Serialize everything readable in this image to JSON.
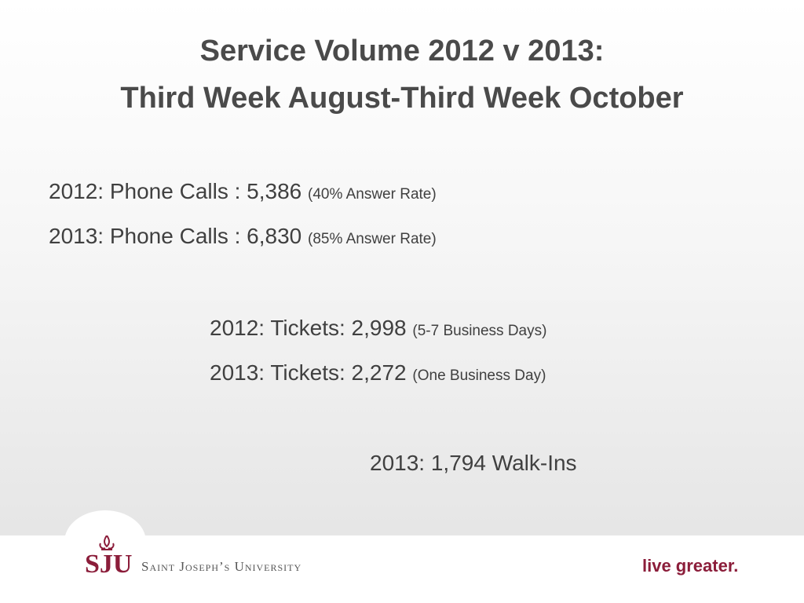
{
  "title": {
    "line1": "Service Volume 2012 v 2013:",
    "line2": "Third Week August-Third Week October"
  },
  "items": [
    {
      "main": "2012: Phone Calls : 5,386",
      "note": "(40% Answer Rate)"
    },
    {
      "main": "2013: Phone Calls : 6,830",
      "note": "(85% Answer Rate)"
    },
    {
      "main": "2012: Tickets: 2,998",
      "note": "(5-7 Business Days)"
    },
    {
      "main": "2013: Tickets: 2,272",
      "note": "(One Business Day)"
    },
    {
      "main": "2013: 1,794 Walk-Ins"
    }
  ],
  "footer": {
    "logo": "SJU",
    "university": "Saint Joseph’s University",
    "tagline": "live greater."
  }
}
